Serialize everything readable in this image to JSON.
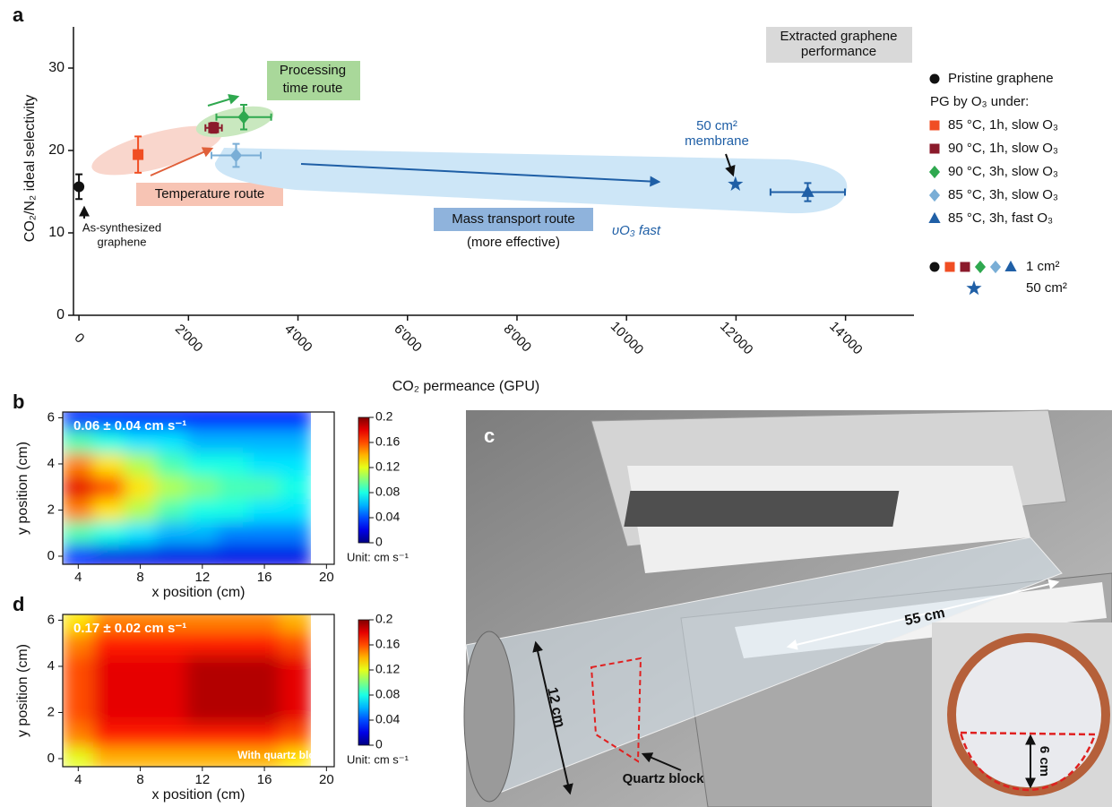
{
  "chart_data": [
    {
      "type": "scatter",
      "panel_label": "a",
      "xlabel": "CO₂ permeance (GPU)",
      "ylabel": "CO₂/N₂ ideal selectivity",
      "xlim": [
        -100,
        15250
      ],
      "ylim": [
        0,
        35
      ],
      "xticks": [
        0,
        {
          "value": 2000,
          "label": "2'000"
        },
        {
          "value": 4000,
          "label": "4'000"
        },
        {
          "value": 6000,
          "label": "6'000"
        },
        {
          "value": 8000,
          "label": "8'000"
        },
        {
          "value": 10000,
          "label": "10'000"
        },
        {
          "value": 12000,
          "label": "12'000"
        },
        {
          "value": 14000,
          "label": "14'000"
        }
      ],
      "yticks": [
        0,
        10,
        20,
        30
      ],
      "legend_position": "right",
      "legend_title": "PG by O₃ under:",
      "series": [
        {
          "name": "Pristine graphene",
          "color": "#111111",
          "marker": "circle",
          "x": [
            0
          ],
          "values": [
            15.6
          ],
          "yerr": [
            1.5
          ]
        },
        {
          "name": "85 °C, 1h, slow O₃",
          "color": "#f04e23",
          "marker": "square",
          "x": [
            1080
          ],
          "values": [
            19.5
          ],
          "yerr": [
            2.2
          ]
        },
        {
          "name": "90 °C, 1h, slow O₃",
          "color": "#8b1a2b",
          "marker": "square",
          "x": [
            2460
          ],
          "values": [
            22.75
          ],
          "xerr": [
            150
          ],
          "yerr": [
            0.6
          ]
        },
        {
          "name": "90 °C, 3h, slow O₃",
          "color": "#2fa84f",
          "marker": "diamond",
          "x": [
            3010
          ],
          "values": [
            24.05
          ],
          "xerr": [
            500
          ],
          "yerr": [
            1.5
          ]
        },
        {
          "name": "85 °C, 3h, slow O₃",
          "color": "#7aaed6",
          "marker": "diamond",
          "x": [
            2870
          ],
          "values": [
            19.4
          ],
          "xerr": [
            450
          ],
          "yerr": [
            1.4
          ]
        },
        {
          "name": "85 °C, 3h, fast O₃",
          "color": "#1f5fa6",
          "marker": "triangle",
          "x": [
            13310
          ],
          "values": [
            14.95
          ],
          "xerr": [
            680
          ],
          "yerr": [
            1.1
          ]
        },
        {
          "color": "#1f5fa6",
          "marker": "star",
          "x": [
            11990
          ],
          "values": [
            15.9
          ]
        }
      ],
      "size_legend": [
        "1 cm²",
        "50 cm²"
      ],
      "annotations": [
        "Extracted graphene",
        "performance",
        "Processing",
        "time route",
        "Temperature route",
        "As-synthesized",
        "graphene",
        "Mass transport route",
        "(more effective)",
        "υO₃ fast",
        "50 cm²",
        "membrane"
      ]
    },
    {
      "type": "heatmap",
      "panel_label": "b",
      "xlabel": "x position (cm)",
      "ylabel": "y position (cm)",
      "xlim": [
        3,
        20.5
      ],
      "ylim": [
        -0.35,
        6.25
      ],
      "xticks": [
        4,
        8,
        12,
        16,
        20
      ],
      "yticks": [
        0,
        2,
        4,
        6
      ],
      "x": [
        4,
        6,
        8,
        10,
        12,
        14,
        16,
        18
      ],
      "y": [
        0,
        1,
        2,
        3,
        4,
        5,
        6
      ],
      "z": [
        [
          0.03,
          0.02,
          0.02,
          0.02,
          0.02,
          0.02,
          0.02,
          0.02
        ],
        [
          0.09,
          0.08,
          0.07,
          0.06,
          0.06,
          0.05,
          0.05,
          0.05
        ],
        [
          0.15,
          0.13,
          0.11,
          0.09,
          0.08,
          0.08,
          0.07,
          0.07
        ],
        [
          0.18,
          0.16,
          0.13,
          0.11,
          0.1,
          0.09,
          0.09,
          0.08
        ],
        [
          0.15,
          0.13,
          0.11,
          0.09,
          0.08,
          0.08,
          0.07,
          0.07
        ],
        [
          0.09,
          0.08,
          0.07,
          0.07,
          0.06,
          0.06,
          0.06,
          0.06
        ],
        [
          0.03,
          0.03,
          0.03,
          0.03,
          0.03,
          0.03,
          0.03,
          0.03
        ]
      ],
      "colormap": "jet",
      "clim": [
        0,
        0.2
      ],
      "cticks": [
        0,
        0.04,
        0.08,
        0.12,
        0.16,
        0.2
      ],
      "colorbar_label": "Unit: cm s⁻¹",
      "annotation": "0.06 ± 0.04 cm s⁻¹"
    },
    {
      "type": "heatmap",
      "panel_label": "d",
      "xlabel": "x position (cm)",
      "ylabel": "y position (cm)",
      "xlim": [
        3,
        20.5
      ],
      "ylim": [
        -0.35,
        6.25
      ],
      "xticks": [
        4,
        8,
        12,
        16,
        20
      ],
      "yticks": [
        0,
        2,
        4,
        6
      ],
      "x": [
        4,
        6,
        8,
        10,
        12,
        14,
        16,
        18
      ],
      "y": [
        0,
        1,
        2,
        3,
        4,
        5,
        6
      ],
      "z": [
        [
          0.12,
          0.14,
          0.14,
          0.14,
          0.14,
          0.14,
          0.14,
          0.13
        ],
        [
          0.15,
          0.17,
          0.17,
          0.17,
          0.17,
          0.17,
          0.17,
          0.16
        ],
        [
          0.16,
          0.18,
          0.18,
          0.18,
          0.19,
          0.19,
          0.19,
          0.18
        ],
        [
          0.16,
          0.18,
          0.18,
          0.18,
          0.19,
          0.19,
          0.19,
          0.18
        ],
        [
          0.16,
          0.18,
          0.18,
          0.18,
          0.19,
          0.19,
          0.19,
          0.18
        ],
        [
          0.15,
          0.17,
          0.17,
          0.17,
          0.17,
          0.17,
          0.17,
          0.16
        ],
        [
          0.13,
          0.15,
          0.15,
          0.15,
          0.15,
          0.15,
          0.15,
          0.14
        ]
      ],
      "colormap": "jet",
      "clim": [
        0,
        0.2
      ],
      "cticks": [
        0,
        0.04,
        0.08,
        0.12,
        0.16,
        0.2
      ],
      "colorbar_label": "Unit: cm s⁻¹",
      "annotation": "0.17 ± 0.02 cm s⁻¹",
      "note": "With quartz block"
    }
  ],
  "photo": {
    "panel_label": "c",
    "labels": [
      "55 cm",
      "12 cm",
      "Quartz block",
      "6 cm"
    ]
  }
}
